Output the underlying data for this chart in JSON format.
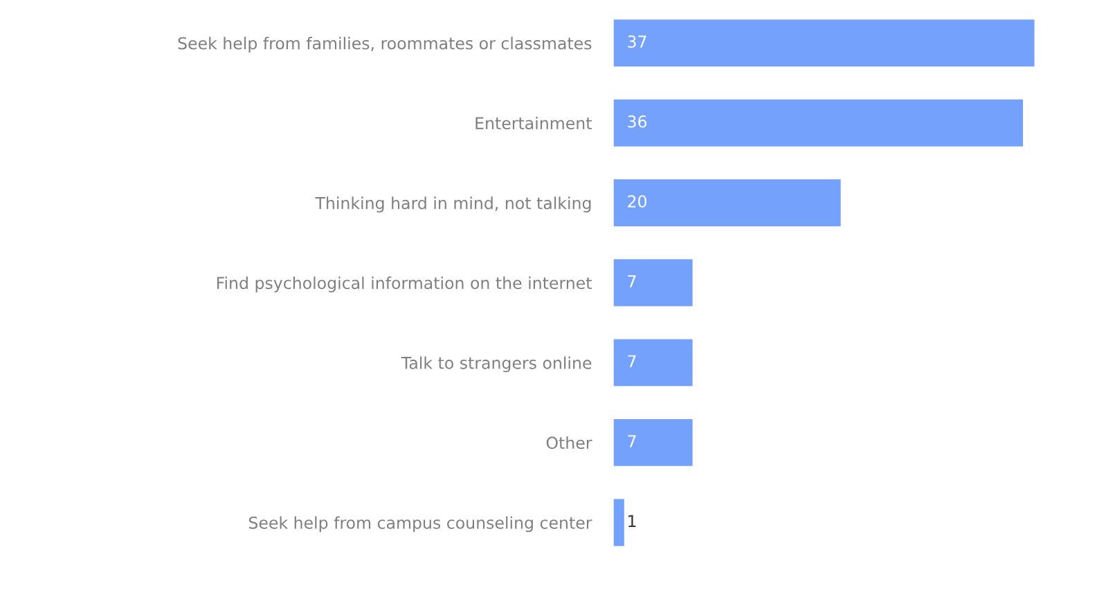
{
  "chart_data": {
    "type": "bar",
    "orientation": "horizontal",
    "categories": [
      "Seek help from families, roommates or classmates",
      "Entertainment",
      "Thinking hard in mind, not talking",
      "Find psychological information on the internet",
      "Talk to strangers online",
      "Other",
      "Seek help from campus counseling center"
    ],
    "values": [
      37,
      36,
      20,
      7,
      7,
      7,
      1
    ],
    "color": "#73a1fb",
    "data_labels": true,
    "grid": false,
    "legend": false,
    "tick_labels": "y"
  }
}
